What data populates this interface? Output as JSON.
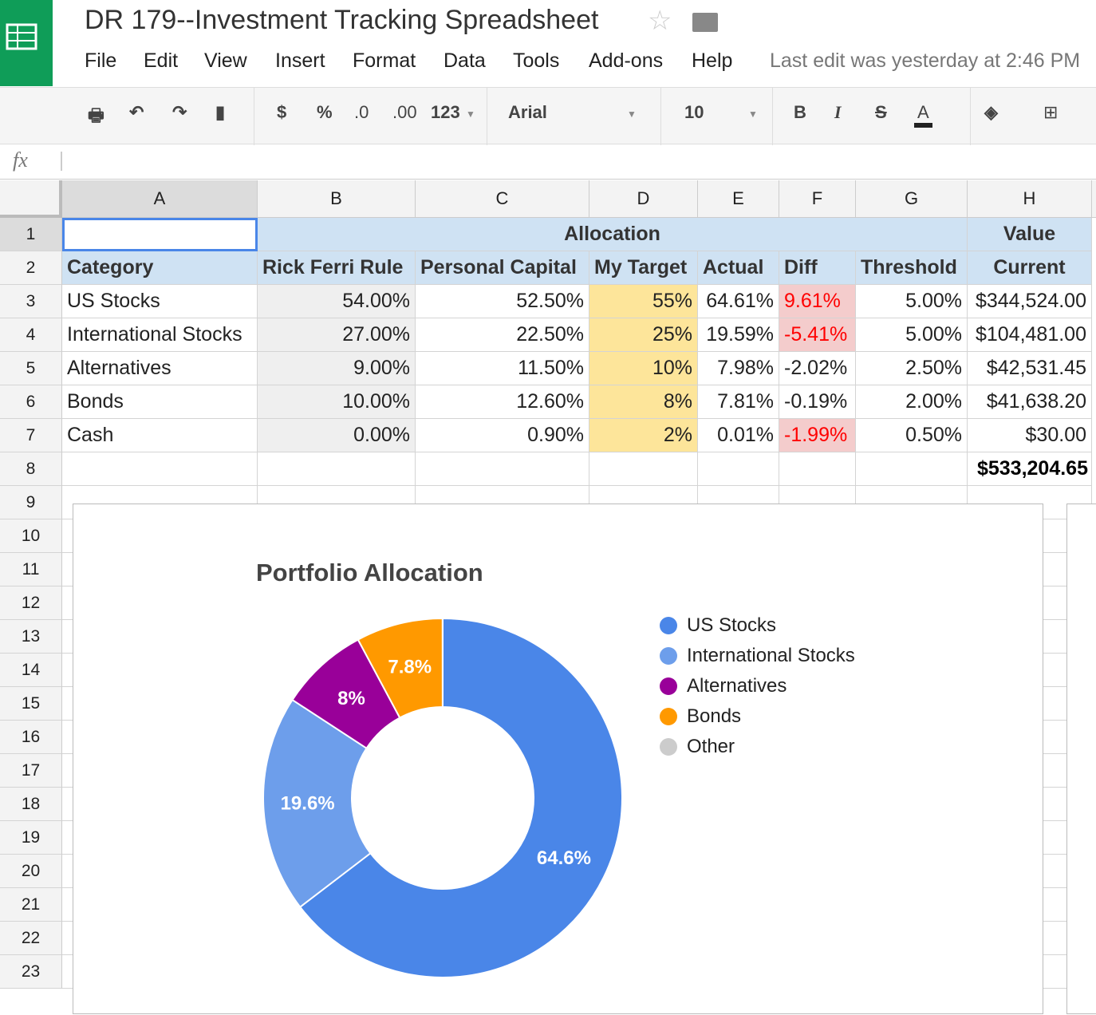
{
  "app": {
    "title": "DR 179--Investment Tracking Spreadsheet",
    "last_edit": "Last edit was yesterday at 2:46 PM",
    "menu": [
      "File",
      "Edit",
      "View",
      "Insert",
      "Format",
      "Data",
      "Tools",
      "Add-ons",
      "Help"
    ]
  },
  "toolbar": {
    "currency": "$",
    "percent": "%",
    "dec_decrease": ".0",
    "dec_increase": ".00",
    "more_formats": "123",
    "font": "Arial",
    "font_size": "10",
    "bold": "B",
    "italic": "I",
    "strike": "S",
    "text_color": "A"
  },
  "formula_bar": {
    "fx": "fx",
    "value": ""
  },
  "columns": [
    "A",
    "B",
    "C",
    "D",
    "E",
    "F",
    "G",
    "H"
  ],
  "rows": [
    "1",
    "2",
    "3",
    "4",
    "5",
    "6",
    "7",
    "8",
    "9",
    "10",
    "11",
    "12",
    "13",
    "14",
    "15",
    "16",
    "17",
    "18",
    "19",
    "20",
    "21",
    "22",
    "23"
  ],
  "sheet": {
    "row1": {
      "A": "",
      "allocation": "Allocation",
      "value": "Value"
    },
    "headers": [
      "Category",
      "Rick Ferri Rule",
      "Personal Capital",
      "My Target",
      "Actual",
      "Diff",
      "Threshold",
      "Current"
    ],
    "data": [
      [
        "US Stocks",
        "54.00%",
        "52.50%",
        "55%",
        "64.61%",
        "9.61%",
        "5.00%",
        "$344,524.00"
      ],
      [
        "International Stocks",
        "27.00%",
        "22.50%",
        "25%",
        "19.59%",
        "-5.41%",
        "5.00%",
        "$104,481.00"
      ],
      [
        "Alternatives",
        "9.00%",
        "11.50%",
        "10%",
        "7.98%",
        "-2.02%",
        "2.50%",
        "$42,531.45"
      ],
      [
        "Bonds",
        "10.00%",
        "12.60%",
        "8%",
        "7.81%",
        "-0.19%",
        "2.00%",
        "$41,638.20"
      ],
      [
        "Cash",
        "0.00%",
        "0.90%",
        "2%",
        "0.01%",
        "-1.99%",
        "0.50%",
        "$30.00"
      ]
    ],
    "diff_flagged": [
      true,
      true,
      false,
      false,
      true
    ],
    "total": "$533,204.65"
  },
  "colors": {
    "header_bg": "#cfe2f3",
    "target_bg": "#fde59a",
    "flag_bg": "#f4cccc",
    "flag_text": "#ff0000",
    "ferri_bg": "#efefef"
  },
  "chart_data": {
    "type": "pie",
    "donut": true,
    "title": "Portfolio Allocation",
    "legend_position": "right",
    "categories": [
      "US Stocks",
      "International Stocks",
      "Alternatives",
      "Bonds",
      "Other"
    ],
    "values": [
      64.61,
      19.59,
      7.98,
      7.81,
      0.01
    ],
    "labels": [
      "64.6%",
      "19.6%",
      "8%",
      "7.8%",
      ""
    ],
    "colors": [
      "#4a86e8",
      "#6d9eeb",
      "#990099",
      "#ff9900",
      "#cccccc"
    ]
  }
}
